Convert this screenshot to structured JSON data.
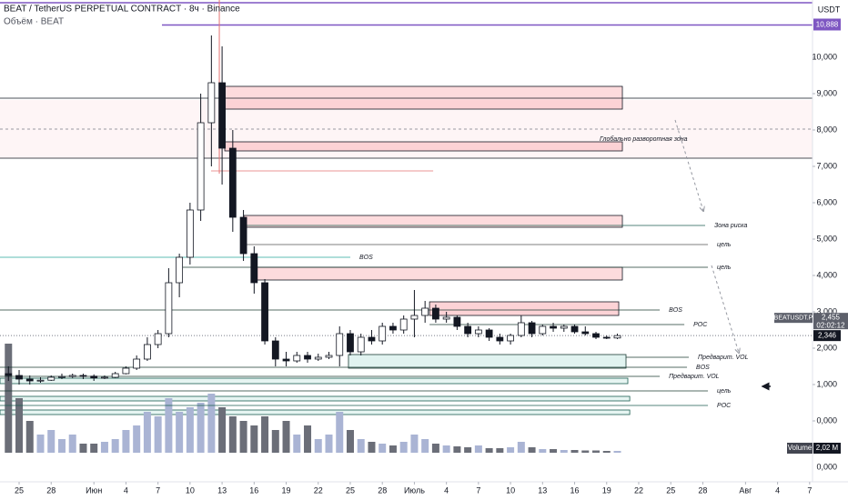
{
  "header": {
    "title": "BEAT / TetherUS PERPETUAL CONTRACT · 8ч · Binance",
    "subtitle": "Объём · BEAT"
  },
  "chart_data": {
    "type": "candlestick",
    "currency": "USDT",
    "x": [
      -1,
      0,
      1,
      2,
      3,
      4,
      5,
      6,
      7,
      8,
      9,
      10,
      11,
      12,
      13,
      14,
      15,
      16,
      17,
      18,
      19,
      20,
      21,
      22,
      23,
      24,
      25,
      26,
      27,
      28,
      29,
      30,
      31,
      32,
      33,
      34,
      35,
      36,
      37,
      38,
      39,
      40,
      41,
      42,
      43,
      44,
      45,
      46,
      47,
      48,
      49,
      50,
      51,
      52,
      53,
      54,
      55,
      56
    ],
    "open": [
      1.3,
      1.25,
      1.15,
      1.1,
      1.12,
      1.2,
      1.22,
      1.25,
      1.23,
      1.18,
      1.2,
      1.3,
      1.45,
      1.7,
      2.1,
      2.4,
      3.8,
      4.5,
      5.8,
      8.2,
      9.3,
      7.5,
      5.6,
      4.6,
      3.8,
      2.2,
      1.7,
      1.65,
      1.8,
      1.7,
      1.75,
      1.8,
      2.4,
      1.9,
      2.3,
      2.2,
      2.6,
      2.5,
      2.8,
      2.9,
      3.1,
      2.8,
      2.85,
      2.6,
      2.4,
      2.5,
      2.3,
      2.2,
      2.35,
      2.7,
      2.4,
      2.6,
      2.55,
      2.6,
      2.45,
      2.4,
      2.3,
      2.28
    ],
    "high": [
      1.5,
      1.4,
      1.25,
      1.2,
      1.25,
      1.3,
      1.3,
      1.3,
      1.28,
      1.25,
      1.35,
      1.5,
      1.8,
      2.3,
      2.5,
      4.2,
      4.6,
      6.0,
      9.0,
      10.6,
      10.3,
      8.0,
      5.8,
      4.8,
      3.9,
      2.3,
      1.9,
      1.9,
      1.9,
      1.85,
      1.9,
      2.6,
      2.5,
      2.4,
      2.5,
      2.7,
      2.7,
      2.9,
      3.6,
      3.3,
      3.2,
      3.0,
      2.9,
      2.7,
      2.6,
      2.55,
      2.4,
      2.4,
      2.9,
      2.75,
      2.65,
      2.7,
      2.65,
      2.65,
      2.6,
      2.45,
      2.35,
      2.4
    ],
    "low": [
      1.1,
      1.0,
      1.0,
      1.05,
      1.1,
      1.15,
      1.18,
      1.15,
      1.1,
      1.15,
      1.18,
      1.28,
      1.4,
      1.65,
      2.0,
      2.3,
      3.4,
      4.3,
      5.5,
      7.0,
      6.5,
      5.2,
      4.4,
      3.5,
      2.1,
      1.5,
      1.5,
      1.6,
      1.6,
      1.65,
      1.7,
      1.5,
      1.8,
      1.8,
      2.1,
      2.1,
      2.4,
      2.4,
      2.3,
      2.7,
      2.7,
      2.7,
      2.5,
      2.3,
      2.3,
      2.2,
      2.1,
      2.1,
      2.3,
      2.3,
      2.35,
      2.45,
      2.45,
      2.4,
      2.35,
      2.25,
      2.25,
      2.25
    ],
    "close": [
      1.25,
      1.15,
      1.1,
      1.12,
      1.2,
      1.22,
      1.25,
      1.23,
      1.18,
      1.2,
      1.3,
      1.45,
      1.7,
      2.1,
      2.4,
      3.8,
      4.5,
      5.8,
      8.2,
      9.3,
      7.5,
      5.6,
      4.6,
      3.8,
      2.2,
      1.7,
      1.65,
      1.8,
      1.7,
      1.75,
      1.8,
      2.4,
      1.9,
      2.3,
      2.2,
      2.6,
      2.5,
      2.8,
      2.9,
      3.1,
      2.8,
      2.85,
      2.6,
      2.4,
      2.5,
      2.3,
      2.2,
      2.35,
      2.7,
      2.4,
      2.6,
      2.55,
      2.6,
      2.45,
      2.4,
      2.3,
      2.28,
      2.346
    ],
    "volume": [
      120,
      60,
      35,
      20,
      25,
      15,
      20,
      10,
      10,
      12,
      15,
      25,
      30,
      45,
      40,
      60,
      45,
      50,
      55,
      65,
      50,
      40,
      35,
      30,
      40,
      25,
      35,
      20,
      30,
      15,
      20,
      45,
      25,
      15,
      12,
      10,
      8,
      12,
      20,
      15,
      10,
      8,
      7,
      6,
      8,
      5,
      5,
      6,
      12,
      6,
      4,
      4,
      3,
      3,
      2.5,
      2.5,
      2,
      2.02
    ],
    "volume_lim": [
      0,
      130
    ],
    "volume_title": "Volume",
    "volume_last_label": "2,02 M",
    "volume_axis_label": "0,000",
    "xlim": [
      -1.79,
      74.27
    ],
    "xticks": [
      {
        "value": 0,
        "label": "25"
      },
      {
        "value": 3,
        "label": "28"
      },
      {
        "value": 7,
        "label": "Июн"
      },
      {
        "value": 10,
        "label": "4"
      },
      {
        "value": 13,
        "label": "7"
      },
      {
        "value": 16,
        "label": "10"
      },
      {
        "value": 19,
        "label": "13"
      },
      {
        "value": 22,
        "label": "16"
      },
      {
        "value": 25,
        "label": "19"
      },
      {
        "value": 28,
        "label": "22"
      },
      {
        "value": 31,
        "label": "25"
      },
      {
        "value": 34,
        "label": "28"
      },
      {
        "value": 37,
        "label": "Июль"
      },
      {
        "value": 40,
        "label": "4"
      },
      {
        "value": 43,
        "label": "7"
      },
      {
        "value": 46,
        "label": "10"
      },
      {
        "value": 49,
        "label": "13"
      },
      {
        "value": 52,
        "label": "16"
      },
      {
        "value": 55,
        "label": "19"
      },
      {
        "value": 58,
        "label": "22"
      },
      {
        "value": 61,
        "label": "25"
      },
      {
        "value": 64,
        "label": "28"
      },
      {
        "value": 68,
        "label": "Авг"
      },
      {
        "value": 71,
        "label": "4"
      },
      {
        "value": 74,
        "label": "7"
      }
    ],
    "ylim": [
      -1.675,
      11.575
    ],
    "yticks": [
      {
        "value": 0,
        "label": "0,000"
      },
      {
        "value": 1,
        "label": "1,000"
      },
      {
        "value": 2,
        "label": "2,000"
      },
      {
        "value": 3,
        "label": "3,000"
      },
      {
        "value": 4,
        "label": "4,000"
      },
      {
        "value": 5,
        "label": "5,000"
      },
      {
        "value": 6,
        "label": "6,000"
      },
      {
        "value": 7,
        "label": "7,000"
      },
      {
        "value": 8,
        "label": "8,000"
      },
      {
        "value": 9,
        "label": "9,000"
      },
      {
        "value": 10,
        "label": "10,000"
      }
    ],
    "symbol_tag": "BEATUSDT.P",
    "price_tag": {
      "value": 2.455,
      "label": "2,455"
    },
    "countdown": "02:02:12",
    "last_price": {
      "value": 2.346,
      "label": "2,346"
    },
    "alert_level": {
      "value": 10.888,
      "label": "10,888",
      "x": [
        13.37,
        74.27
      ],
      "color": "#7e57c2"
    },
    "top_level": {
      "value": 11.5,
      "x": [
        -1.79,
        74.27
      ],
      "color": "#7e57c2"
    },
    "vline": {
      "value": 18.74,
      "y": [
        6.8,
        11.575
      ],
      "color": "#e57373"
    },
    "zones": [
      {
        "y": [
          7.225,
          8.825
        ],
        "x": [
          -1.79,
          74.27
        ],
        "fill": "rgba(242,54,69,0.05)",
        "stroke": "none"
      },
      {
        "y": [
          8.575,
          9.2
        ],
        "x": [
          19.25,
          56.47
        ],
        "fill": "rgba(242,54,69,0.18)",
        "stroke": "#131722"
      },
      {
        "y": [
          7.425,
          7.675
        ],
        "x": [
          19.25,
          56.47
        ],
        "fill": "rgba(242,54,69,0.18)",
        "stroke": "#131722",
        "label": "Глобально разворотная зона"
      },
      {
        "y": [
          5.325,
          5.65
        ],
        "x": [
          21.04,
          56.47
        ],
        "fill": "rgba(242,54,69,0.18)",
        "stroke": "#131722"
      },
      {
        "y": [
          3.875,
          4.225
        ],
        "x": [
          21.89,
          56.47
        ],
        "fill": "rgba(242,54,69,0.18)",
        "stroke": "#131722"
      },
      {
        "y": [
          2.9,
          3.275
        ],
        "x": [
          38.42,
          56.13
        ],
        "fill": "rgba(242,54,69,0.22)",
        "stroke": "#131722"
      },
      {
        "y": [
          1.45,
          1.825
        ],
        "x": [
          30.83,
          56.81
        ],
        "fill": "rgba(8,153,129,0.12)",
        "stroke": "#1b3b33"
      },
      {
        "y": [
          1.025,
          1.175
        ],
        "x": [
          -1.79,
          56.98
        ],
        "fill": "rgba(8,153,129,0.10)",
        "stroke": "#1b5e50"
      },
      {
        "y": [
          0.55,
          0.675
        ],
        "x": [
          -1.79,
          57.16
        ],
        "fill": "rgba(8,153,129,0.10)",
        "stroke": "#1b5e50"
      },
      {
        "y": [
          0.175,
          0.3
        ],
        "x": [
          -1.79,
          57.16
        ],
        "fill": "rgba(8,153,129,0.10)",
        "stroke": "#1b5e50"
      }
    ],
    "lines": [
      {
        "value": 8.875,
        "x": [
          -1.79,
          74.27
        ],
        "color": "#131722"
      },
      {
        "value": 8.025,
        "x": [
          -1.79,
          74.27
        ],
        "color": "#787b86",
        "dash": true
      },
      {
        "value": 7.225,
        "x": [
          -1.79,
          74.27
        ],
        "color": "#131722"
      },
      {
        "value": 6.875,
        "x": [
          17.97,
          38.76
        ],
        "color": "#e57373"
      },
      {
        "value": 5.375,
        "x": [
          21.04,
          64.22
        ],
        "color": "#1b5e50",
        "label": "Зона риска"
      },
      {
        "value": 4.85,
        "x": [
          21.04,
          64.48
        ],
        "color": "#555",
        "label": "цель"
      },
      {
        "value": 4.5,
        "x": [
          -1.79,
          31.0
        ],
        "color": "#26a69a",
        "label": "BOS"
      },
      {
        "value": 4.225,
        "x": [
          15.25,
          64.48
        ],
        "color": "#1b3b33",
        "label": "цель"
      },
      {
        "value": 3.05,
        "x": [
          -1.79,
          59.97
        ],
        "color": "#1b3b33",
        "label": "BOS"
      },
      {
        "value": 2.65,
        "x": [
          38.42,
          62.27
        ],
        "color": "#1b3b33",
        "label": "POC"
      },
      {
        "value": 1.75,
        "x": [
          56.81,
          62.69
        ],
        "color": "#1b3b33",
        "label": "Предварит. VOL"
      },
      {
        "value": 1.475,
        "x": [
          -1.79,
          62.52
        ],
        "color": "#1b3b33",
        "label": "BOS"
      },
      {
        "value": 1.225,
        "x": [
          -1.79,
          59.97
        ],
        "color": "#1b3b33",
        "label": "Предварит. VOL"
      },
      {
        "value": 0.825,
        "x": [
          -1.79,
          64.48
        ],
        "color": "#1b3b33",
        "label": "цель"
      },
      {
        "value": 0.425,
        "x": [
          -1.79,
          64.48
        ],
        "color": "#1b5e50",
        "label": "POC"
      }
    ],
    "colors": {
      "up": "#ffffff",
      "down": "#131722",
      "outline": "#131722",
      "volume_up": "#aab4d4",
      "volume_down": "#6b6e78"
    }
  }
}
